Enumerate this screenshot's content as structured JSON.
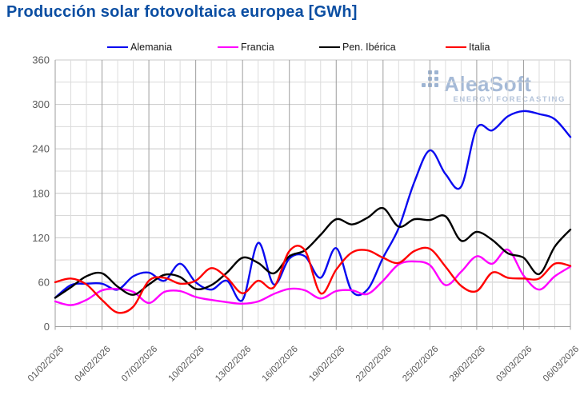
{
  "title": "Producción solar fotovoltaica europea [GWh]",
  "title_color": "#0b4ea2",
  "watermark": {
    "brand": "AleaSoft",
    "tagline": "ENERGY FORECASTING",
    "color": "#a5bad7"
  },
  "legend": [
    {
      "label": "Alemania",
      "color": "#0a0af0"
    },
    {
      "label": "Francia",
      "color": "#ff00ff"
    },
    {
      "label": "Pen. Ibérica",
      "color": "#000000"
    },
    {
      "label": "Italia",
      "color": "#ff0000"
    }
  ],
  "axes": {
    "y_ticks": [
      0,
      60,
      120,
      180,
      240,
      300,
      360
    ],
    "y_minor_step": 30,
    "x_tick_labels": [
      "01/02/2026",
      "04/02/2026",
      "07/02/2026",
      "10/02/2026",
      "13/02/2026",
      "16/02/2026",
      "19/02/2026",
      "22/02/2026",
      "25/02/2026",
      "28/02/2026",
      "03/03/2026",
      "06/03/2026"
    ],
    "label_color": "#595959"
  },
  "chart_data": {
    "type": "line",
    "title": "Producción solar fotovoltaica europea [GWh]",
    "ylabel": "GWh",
    "ylim": [
      0,
      360
    ],
    "ytick_step": 60,
    "grid": true,
    "legend_position": "top",
    "smooth": true,
    "x": [
      "01/02/2026",
      "02/02/2026",
      "03/02/2026",
      "04/02/2026",
      "05/02/2026",
      "06/02/2026",
      "07/02/2026",
      "08/02/2026",
      "09/02/2026",
      "10/02/2026",
      "11/02/2026",
      "12/02/2026",
      "13/02/2026",
      "14/02/2026",
      "15/02/2026",
      "16/02/2026",
      "17/02/2026",
      "18/02/2026",
      "19/02/2026",
      "20/02/2026",
      "21/02/2026",
      "22/02/2026",
      "23/02/2026",
      "24/02/2026",
      "25/02/2026",
      "26/02/2026",
      "27/02/2026",
      "28/02/2026",
      "01/03/2026",
      "02/03/2026",
      "03/03/2026",
      "04/03/2026",
      "05/03/2026",
      "06/03/2026"
    ],
    "xtick_labels": [
      "01/02/2026",
      "04/02/2026",
      "07/02/2026",
      "10/02/2026",
      "13/02/2026",
      "16/02/2026",
      "19/02/2026",
      "22/02/2026",
      "25/02/2026",
      "28/02/2026",
      "03/03/2026",
      "06/03/2026"
    ],
    "series": [
      {
        "name": "Alemania",
        "color": "#0a0af0",
        "values": [
          39,
          56,
          58,
          58,
          50,
          68,
          73,
          62,
          85,
          60,
          50,
          62,
          36,
          113,
          57,
          92,
          95,
          66,
          106,
          48,
          50,
          93,
          133,
          195,
          238,
          206,
          189,
          268,
          265,
          284,
          291,
          287,
          280,
          256
        ]
      },
      {
        "name": "Francia",
        "color": "#ff00ff",
        "values": [
          34,
          29,
          36,
          49,
          51,
          47,
          32,
          47,
          48,
          40,
          36,
          33,
          31,
          34,
          44,
          51,
          49,
          38,
          48,
          49,
          44,
          62,
          84,
          88,
          83,
          56,
          74,
          95,
          85,
          104,
          69,
          50,
          68,
          81
        ]
      },
      {
        "name": "Pen. Ibérica",
        "color": "#000000",
        "values": [
          39,
          53,
          68,
          72,
          54,
          43,
          57,
          70,
          67,
          51,
          56,
          73,
          93,
          86,
          72,
          95,
          103,
          124,
          145,
          138,
          147,
          160,
          135,
          145,
          144,
          149,
          116,
          128,
          117,
          99,
          93,
          71,
          108,
          131
        ]
      },
      {
        "name": "Italia",
        "color": "#ff0000",
        "values": [
          60,
          65,
          57,
          36,
          19,
          27,
          62,
          66,
          58,
          62,
          79,
          66,
          45,
          62,
          53,
          102,
          103,
          45,
          77,
          100,
          103,
          93,
          86,
          102,
          105,
          81,
          55,
          48,
          73,
          66,
          65,
          65,
          85,
          82
        ]
      }
    ]
  }
}
